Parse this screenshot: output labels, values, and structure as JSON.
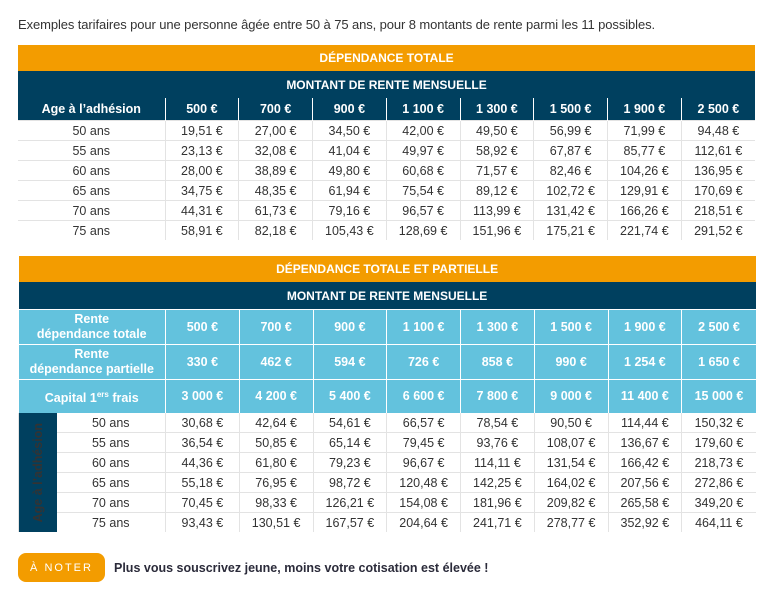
{
  "intro": "Exemples tarifaires pour une personne âgée entre 50 à 75 ans, pour 8 montants de rente parmi les 11 possibles.",
  "table1": {
    "title": "DÉPENDANCE TOTALE",
    "subtitle": "MONTANT DE RENTE MENSUELLE",
    "age_header": "Age à  l’adhésion",
    "columns": [
      "500 €",
      "700 €",
      "900 €",
      "1 100 €",
      "1 300 €",
      "1 500 €",
      "1 900 €",
      "2 500 €"
    ],
    "rows": [
      {
        "age": "50 ans",
        "values": [
          "19,51 €",
          "27,00 €",
          "34,50 €",
          "42,00 €",
          "49,50 €",
          "56,99 €",
          "71,99 €",
          "94,48 €"
        ]
      },
      {
        "age": "55 ans",
        "values": [
          "23,13 €",
          "32,08 €",
          "41,04 €",
          "49,97 €",
          "58,92 €",
          "67,87 €",
          "85,77 €",
          "112,61 €"
        ]
      },
      {
        "age": "60 ans",
        "values": [
          "28,00 €",
          "38,89 €",
          "49,80 €",
          "60,68 €",
          "71,57 €",
          "82,46 €",
          "104,26 €",
          "136,95 €"
        ]
      },
      {
        "age": "65 ans",
        "values": [
          "34,75 €",
          "48,35 €",
          "61,94 €",
          "75,54 €",
          "89,12 €",
          "102,72 €",
          "129,91 €",
          "170,69 €"
        ]
      },
      {
        "age": "70 ans",
        "values": [
          "44,31 €",
          "61,73 €",
          "79,16 €",
          "96,57 €",
          "113,99 €",
          "131,42 €",
          "166,26 €",
          "218,51 €"
        ]
      },
      {
        "age": "75 ans",
        "values": [
          "58,91 €",
          "82,18 €",
          "105,43 €",
          "128,69 €",
          "151,96 €",
          "175,21 €",
          "221,74 €",
          "291,52 €"
        ]
      }
    ]
  },
  "table2": {
    "title": "DÉPENDANCE TOTALE ET PARTIELLE",
    "subtitle": "MONTANT DE RENTE MENSUELLE",
    "header_rows": [
      {
        "label_line1": "Rente",
        "label_line2": "dépendance totale",
        "values": [
          "500 €",
          "700 €",
          "900 €",
          "1 100 €",
          "1 300 €",
          "1 500 €",
          "1 900 €",
          "2 500 €"
        ]
      },
      {
        "label_line1": "Rente",
        "label_line2": "dépendance partielle",
        "values": [
          "330 €",
          "462 €",
          "594 €",
          "726 €",
          "858 €",
          "990 €",
          "1 254 €",
          "1 650 €"
        ]
      },
      {
        "label_main": "Capital 1",
        "label_sup": "ers",
        "label_end": " frais",
        "values": [
          "3 000 €",
          "4 200 €",
          "5 400 €",
          "6 600 €",
          "7 800 €",
          "9 000 €",
          "11 400 €",
          "15 000 €"
        ]
      }
    ],
    "age_vertical_label": "Age à l’adhésion",
    "rows": [
      {
        "age": "50 ans",
        "values": [
          "30,68 €",
          "42,64 €",
          "54,61 €",
          "66,57 €",
          "78,54 €",
          "90,50 €",
          "114,44 €",
          "150,32 €"
        ]
      },
      {
        "age": "55 ans",
        "values": [
          "36,54 €",
          "50,85 €",
          "65,14 €",
          "79,45 €",
          "93,76 €",
          "108,07 €",
          "136,67 €",
          "179,60 €"
        ]
      },
      {
        "age": "60 ans",
        "values": [
          "44,36 €",
          "61,80 €",
          "79,23 €",
          "96,67 €",
          "114,11 €",
          "131,54 €",
          "166,42 €",
          "218,73 €"
        ]
      },
      {
        "age": "65 ans",
        "values": [
          "55,18 €",
          "76,95 €",
          "98,72 €",
          "120,48 €",
          "142,25 €",
          "164,02 €",
          "207,56 €",
          "272,86 €"
        ]
      },
      {
        "age": "70 ans",
        "values": [
          "70,45 €",
          "98,33 €",
          "126,21 €",
          "154,08 €",
          "181,96 €",
          "209,82 €",
          "265,58 €",
          "349,20 €"
        ]
      },
      {
        "age": "75 ans",
        "values": [
          "93,43 €",
          "130,51 €",
          "167,57 €",
          "204,64 €",
          "241,71 €",
          "278,77 €",
          "352,92 €",
          "464,11 €"
        ]
      }
    ]
  },
  "note": {
    "badge": "À NOTER",
    "text": "Plus vous souscrivez jeune, moins votre cotisation est élevée !"
  },
  "colors": {
    "orange": "#f39c00",
    "navy": "#00405f",
    "light_blue": "#63c2dd"
  }
}
